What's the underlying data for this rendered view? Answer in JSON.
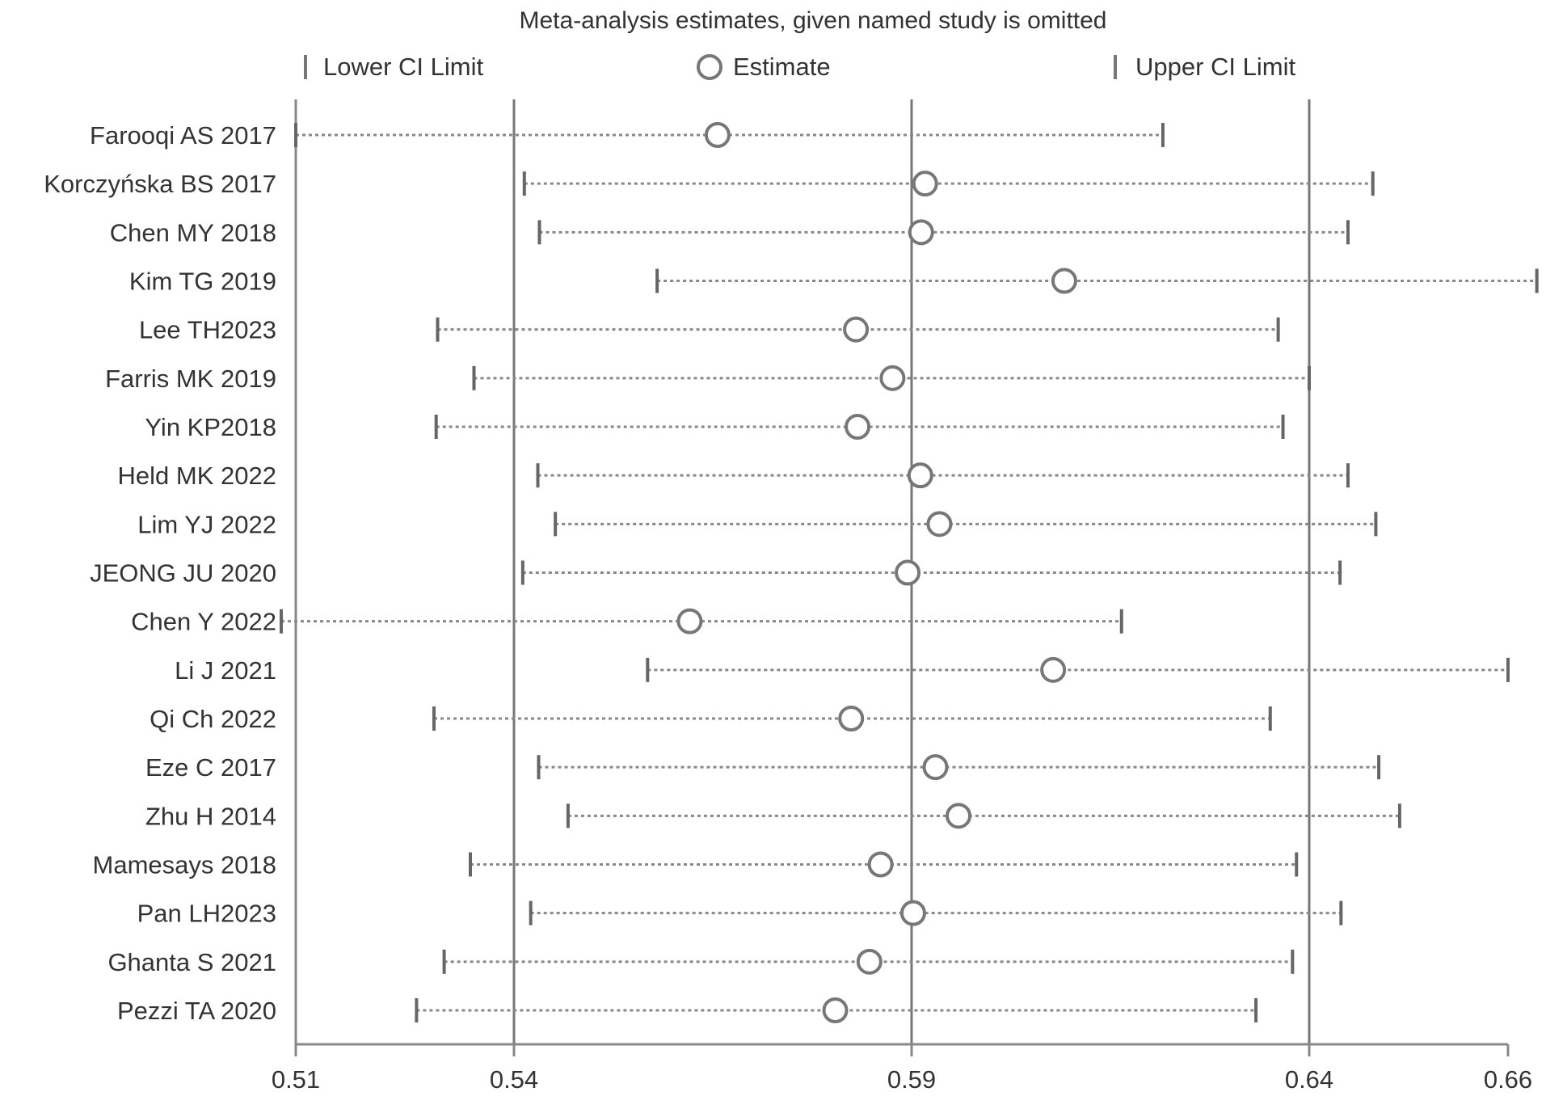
{
  "chart_data": {
    "type": "forest",
    "title": "Meta-analysis estimates, given named study is omitted",
    "legend": {
      "lower": "Lower CI Limit",
      "estimate": "Estimate",
      "upper": "Upper CI Limit"
    },
    "x_ticks": [
      "0.51",
      "0.54",
      "0.59",
      "0.64",
      "0.66"
    ],
    "x_tick_values": [
      0.51,
      0.54,
      0.59,
      0.64,
      0.66
    ],
    "xlim": [
      0.51,
      0.66
    ],
    "reference_lines": [
      0.54,
      0.59,
      0.64
    ],
    "studies": [
      {
        "label": "Farooqi AS 2017",
        "lower": 0.51,
        "estimate": 0.5656,
        "upper": 0.6216
      },
      {
        "label": "Korczyńska BS 2017",
        "lower": 0.5413,
        "estimate": 0.5917,
        "upper": 0.6464
      },
      {
        "label": "Chen MY 2018",
        "lower": 0.5432,
        "estimate": 0.5912,
        "upper": 0.6439
      },
      {
        "label": "Kim TG 2019",
        "lower": 0.558,
        "estimate": 0.6092,
        "upper": 0.6629
      },
      {
        "label": "Lee TH2023",
        "lower": 0.5295,
        "estimate": 0.583,
        "upper": 0.6361
      },
      {
        "label": "Farris MK 2019",
        "lower": 0.5345,
        "estimate": 0.5876,
        "upper": 0.64
      },
      {
        "label": "Yin KP2018",
        "lower": 0.5293,
        "estimate": 0.5832,
        "upper": 0.6367
      },
      {
        "label": "Held MK 2022",
        "lower": 0.543,
        "estimate": 0.5911,
        "upper": 0.6439
      },
      {
        "label": "Lim YJ 2022",
        "lower": 0.5452,
        "estimate": 0.5935,
        "upper": 0.6467
      },
      {
        "label": "JEONG JU 2020",
        "lower": 0.5411,
        "estimate": 0.5895,
        "upper": 0.6431
      },
      {
        "label": "Chen Y 2022",
        "lower": 0.508,
        "estimate": 0.5621,
        "upper": 0.6164
      },
      {
        "label": "Li J 2021",
        "lower": 0.5568,
        "estimate": 0.6078,
        "upper": 0.66
      },
      {
        "label": "Qi Ch 2022",
        "lower": 0.529,
        "estimate": 0.5824,
        "upper": 0.6351
      },
      {
        "label": "Eze C 2017",
        "lower": 0.5431,
        "estimate": 0.593,
        "upper": 0.647
      },
      {
        "label": "Zhu H 2014",
        "lower": 0.5468,
        "estimate": 0.5959,
        "upper": 0.6491
      },
      {
        "label": "Mamesays 2018",
        "lower": 0.534,
        "estimate": 0.5861,
        "upper": 0.6384
      },
      {
        "label": "Pan LH2023",
        "lower": 0.5421,
        "estimate": 0.5902,
        "upper": 0.6432
      },
      {
        "label": "Ghanta S 2021",
        "lower": 0.5304,
        "estimate": 0.5847,
        "upper": 0.6379
      },
      {
        "label": "Pezzi TA 2020",
        "lower": 0.5266,
        "estimate": 0.5804,
        "upper": 0.6333
      }
    ]
  }
}
